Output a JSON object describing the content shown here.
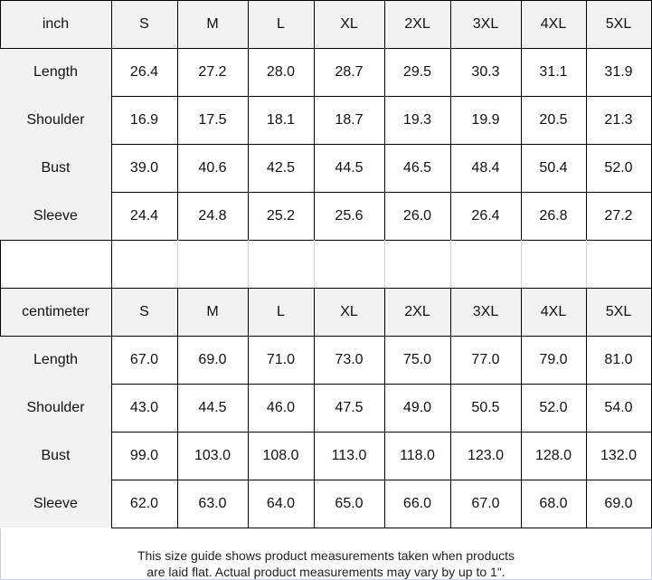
{
  "inch_table": {
    "unit_label": "inch",
    "sizes": [
      "S",
      "M",
      "L",
      "XL",
      "2XL",
      "3XL",
      "4XL",
      "5XL"
    ],
    "rows": [
      {
        "label": "Length",
        "values": [
          "26.4",
          "27.2",
          "28.0",
          "28.7",
          "29.5",
          "30.3",
          "31.1",
          "31.9"
        ]
      },
      {
        "label": "Shoulder",
        "values": [
          "16.9",
          "17.5",
          "18.1",
          "18.7",
          "19.3",
          "19.9",
          "20.5",
          "21.3"
        ]
      },
      {
        "label": "Bust",
        "values": [
          "39.0",
          "40.6",
          "42.5",
          "44.5",
          "46.5",
          "48.4",
          "50.4",
          "52.0"
        ]
      },
      {
        "label": "Sleeve",
        "values": [
          "24.4",
          "24.8",
          "25.2",
          "25.6",
          "26.0",
          "26.4",
          "26.8",
          "27.2"
        ]
      }
    ]
  },
  "cm_table": {
    "unit_label": "centimeter",
    "sizes": [
      "S",
      "M",
      "L",
      "XL",
      "2XL",
      "3XL",
      "4XL",
      "5XL"
    ],
    "rows": [
      {
        "label": "Length",
        "values": [
          "67.0",
          "69.0",
          "71.0",
          "73.0",
          "75.0",
          "77.0",
          "79.0",
          "81.0"
        ]
      },
      {
        "label": "Shoulder",
        "values": [
          "43.0",
          "44.5",
          "46.0",
          "47.5",
          "49.0",
          "50.5",
          "52.0",
          "54.0"
        ]
      },
      {
        "label": "Bust",
        "values": [
          "99.0",
          "103.0",
          "108.0",
          "113.0",
          "118.0",
          "123.0",
          "128.0",
          "132.0"
        ]
      },
      {
        "label": "Sleeve",
        "values": [
          "62.0",
          "63.0",
          "64.0",
          "65.0",
          "66.0",
          "67.0",
          "68.0",
          "69.0"
        ]
      }
    ]
  },
  "footer": {
    "line1": "This size guide shows product measurements taken when products",
    "line2": "are laid flat. Actual product measurements may vary by up to 1\"."
  },
  "colors": {
    "header_bg": "#f2f2f2",
    "label_bg": "#f2f2f2",
    "border": "#000000"
  }
}
